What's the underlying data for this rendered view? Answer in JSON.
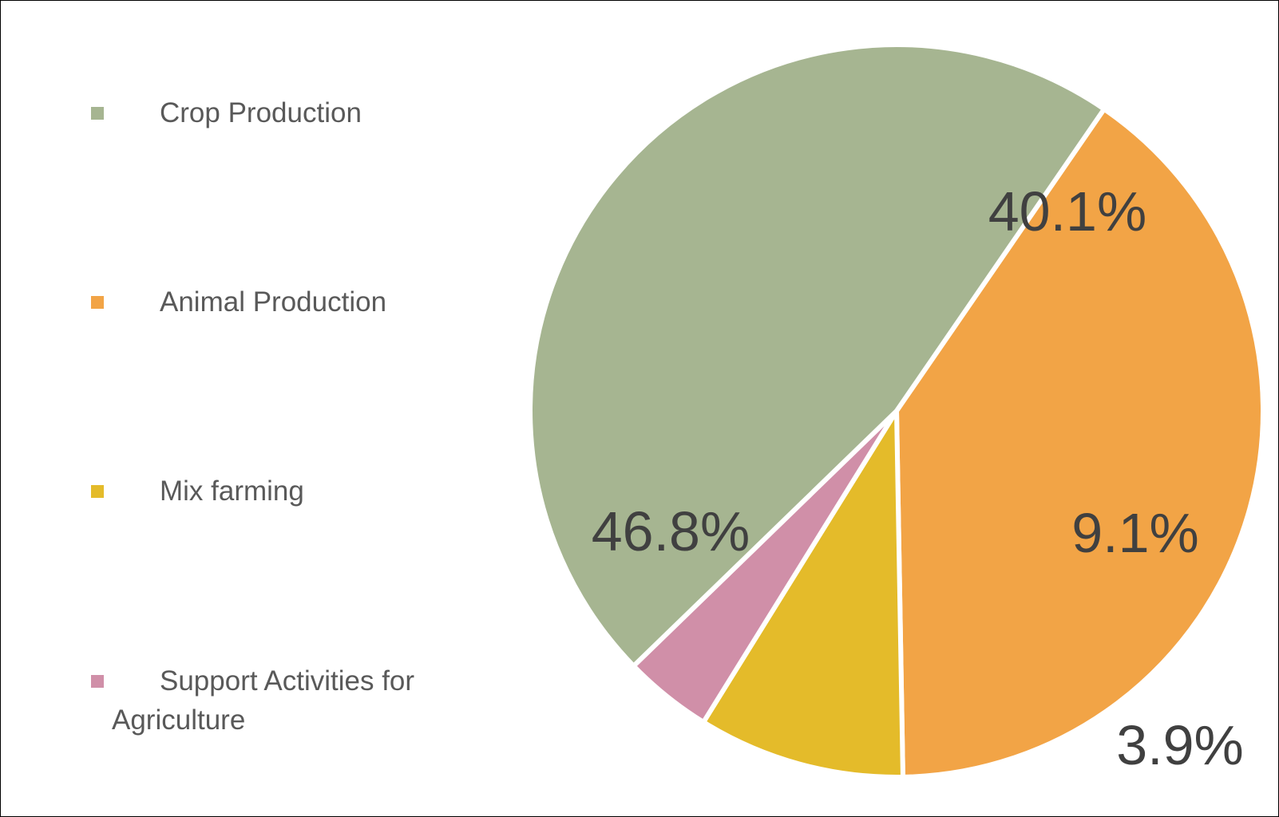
{
  "chart_data": {
    "type": "pie",
    "title": "",
    "categories": [
      "Crop Production",
      "Animal Production",
      "Mix farming",
      "Support Activities for Agriculture"
    ],
    "values": [
      46.8,
      40.1,
      9.1,
      3.9
    ],
    "data_labels": [
      "46.8%",
      "40.1%",
      "9.1%",
      "3.9%"
    ],
    "colors": [
      "#A6B591",
      "#F2A446",
      "#E4BB2A",
      "#D08FA8"
    ],
    "slice_separator_color": "#ffffff",
    "label_color": "#404040",
    "legend_text_color": "#595959",
    "legend": {
      "position": "left",
      "marker": "square"
    },
    "start_angle_deg": 34.5,
    "direction": "clockwise"
  }
}
